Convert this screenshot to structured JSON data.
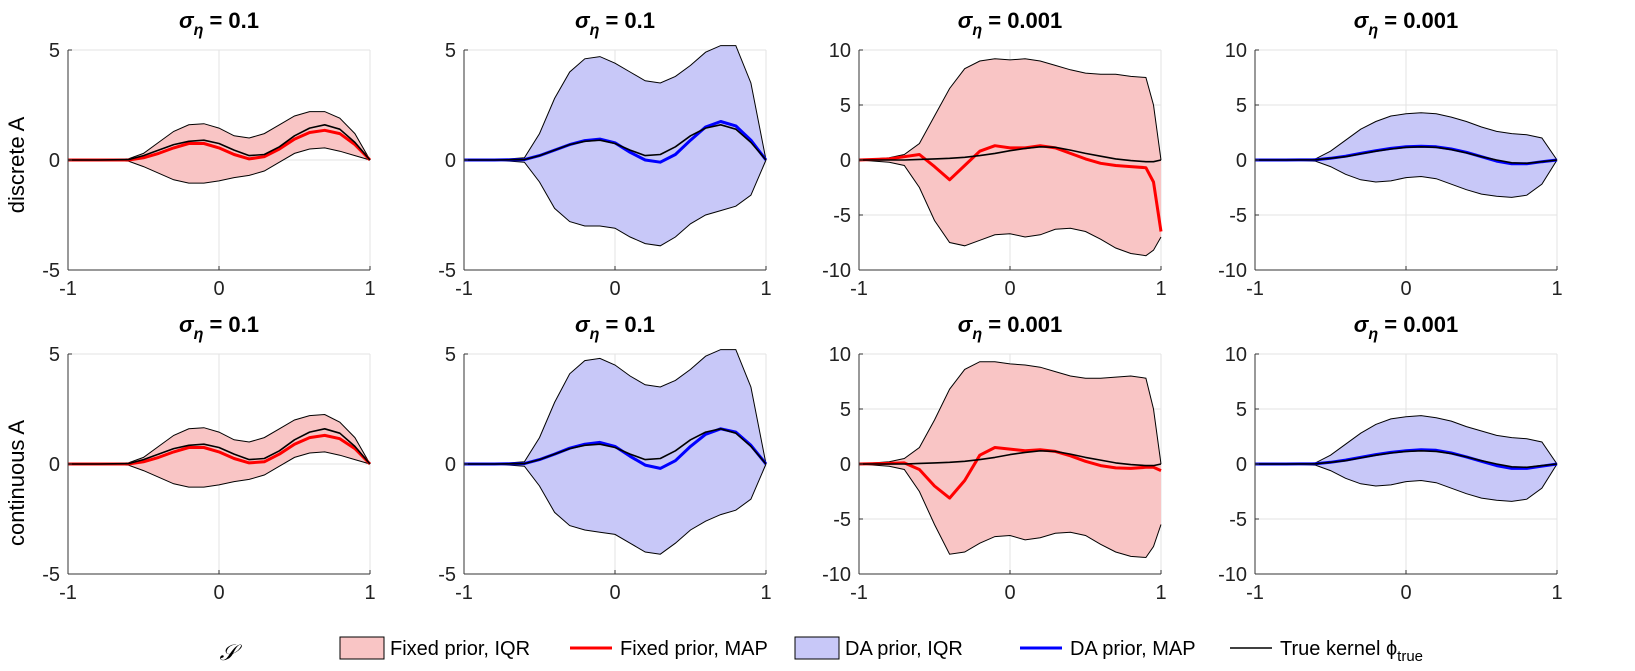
{
  "figure": {
    "row_labels": [
      "discrete A",
      "continuous A"
    ],
    "xlabel": "𝒮",
    "legend": {
      "fixed_iqr": "Fixed prior, IQR",
      "fixed_map": "Fixed prior, MAP",
      "da_iqr": "DA prior, IQR",
      "da_map": "DA prior, MAP",
      "true_kernel": "True kernel ϕ",
      "true_kernel_sub": "true"
    },
    "colors": {
      "fixed_fill": "#f9c5c5",
      "fixed_line": "#ff0000",
      "da_fill": "#c8c8f8",
      "da_line": "#0000ff",
      "true_line": "#000000",
      "grid": "#e3e3e3"
    }
  },
  "chart_data": [
    {
      "type": "line",
      "row": 0,
      "col": 0,
      "title_base": "σ",
      "title_sub": "η",
      "title_value": " = 0.1",
      "prior": "fixed",
      "xlim": [
        -1,
        1
      ],
      "ylim": [
        -5,
        5
      ],
      "xticks": [
        -1,
        0,
        1
      ],
      "yticks": [
        -5,
        0,
        5
      ],
      "grid": true,
      "x": [
        -1,
        -0.8,
        -0.6,
        -0.5,
        -0.4,
        -0.3,
        -0.2,
        -0.1,
        0,
        0.1,
        0.2,
        0.3,
        0.4,
        0.5,
        0.6,
        0.7,
        0.8,
        0.9,
        1
      ],
      "iqr_upper": [
        0,
        0,
        0.05,
        0.3,
        0.8,
        1.3,
        1.6,
        1.65,
        1.45,
        1.1,
        1.0,
        1.2,
        1.6,
        2.0,
        2.2,
        2.2,
        1.9,
        1.2,
        0
      ],
      "iqr_lower": [
        0,
        0,
        -0.05,
        -0.3,
        -0.6,
        -0.9,
        -1.05,
        -1.05,
        -0.95,
        -0.8,
        -0.7,
        -0.5,
        -0.1,
        0.3,
        0.5,
        0.55,
        0.4,
        0.2,
        0
      ],
      "map": [
        0,
        0,
        0,
        0.1,
        0.3,
        0.55,
        0.75,
        0.75,
        0.55,
        0.25,
        0.05,
        0.15,
        0.5,
        0.95,
        1.25,
        1.35,
        1.2,
        0.7,
        0
      ],
      "true": [
        0,
        0,
        0.02,
        0.2,
        0.45,
        0.7,
        0.85,
        0.9,
        0.75,
        0.45,
        0.2,
        0.25,
        0.6,
        1.1,
        1.45,
        1.6,
        1.4,
        0.8,
        0
      ]
    },
    {
      "type": "line",
      "row": 0,
      "col": 1,
      "title_base": "σ",
      "title_sub": "η",
      "title_value": " = 0.1",
      "prior": "da",
      "xlim": [
        -1,
        1
      ],
      "ylim": [
        -5,
        5
      ],
      "xticks": [
        -1,
        0,
        1
      ],
      "yticks": [
        -5,
        0,
        5
      ],
      "grid": true,
      "x": [
        -1,
        -0.8,
        -0.6,
        -0.5,
        -0.4,
        -0.3,
        -0.2,
        -0.1,
        0,
        0.1,
        0.2,
        0.3,
        0.4,
        0.5,
        0.6,
        0.7,
        0.8,
        0.9,
        1
      ],
      "iqr_upper": [
        0,
        0,
        0.1,
        1.2,
        2.8,
        4.0,
        4.6,
        4.7,
        4.4,
        4.0,
        3.6,
        3.5,
        3.8,
        4.3,
        4.9,
        5.2,
        5.2,
        3.5,
        0
      ],
      "iqr_lower": [
        0,
        0,
        -0.1,
        -1.0,
        -2.2,
        -2.8,
        -3.0,
        -3.0,
        -3.1,
        -3.5,
        -3.8,
        -3.9,
        -3.5,
        -2.9,
        -2.5,
        -2.3,
        -2.1,
        -1.6,
        0
      ],
      "map": [
        0,
        0,
        0.02,
        0.2,
        0.45,
        0.7,
        0.88,
        0.95,
        0.78,
        0.35,
        0.0,
        -0.1,
        0.25,
        0.9,
        1.5,
        1.75,
        1.55,
        0.9,
        0
      ],
      "true": [
        0,
        0,
        0.02,
        0.2,
        0.45,
        0.7,
        0.85,
        0.9,
        0.75,
        0.45,
        0.2,
        0.25,
        0.6,
        1.1,
        1.45,
        1.6,
        1.4,
        0.8,
        0
      ]
    },
    {
      "type": "line",
      "row": 0,
      "col": 2,
      "title_base": "σ",
      "title_sub": "η",
      "title_value": " = 0.001",
      "prior": "fixed",
      "xlim": [
        -1,
        1
      ],
      "ylim": [
        -10,
        10
      ],
      "xticks": [
        -1,
        0,
        1
      ],
      "yticks": [
        -10,
        -5,
        0,
        5,
        10
      ],
      "grid": true,
      "x": [
        -1,
        -0.8,
        -0.7,
        -0.6,
        -0.5,
        -0.4,
        -0.3,
        -0.2,
        -0.1,
        0,
        0.1,
        0.2,
        0.3,
        0.4,
        0.5,
        0.6,
        0.7,
        0.8,
        0.9,
        0.95,
        1
      ],
      "iqr_upper": [
        0,
        0.2,
        0.5,
        1.5,
        4.0,
        6.5,
        8.3,
        9.0,
        9.2,
        9.1,
        9.2,
        9.0,
        8.6,
        8.2,
        7.9,
        7.8,
        7.8,
        7.6,
        7.5,
        5.0,
        0
      ],
      "iqr_lower": [
        0,
        -0.2,
        -0.5,
        -2.5,
        -5.5,
        -7.5,
        -7.8,
        -7.3,
        -6.8,
        -6.7,
        -7.0,
        -6.8,
        -6.3,
        -6.2,
        -6.5,
        -7.2,
        -8.0,
        -8.5,
        -8.7,
        -8.2,
        -7.0
      ],
      "map": [
        0,
        0.1,
        0.3,
        0.5,
        -0.6,
        -1.8,
        -0.5,
        0.8,
        1.3,
        1.1,
        1.1,
        1.3,
        1.1,
        0.6,
        0.1,
        -0.3,
        -0.5,
        -0.6,
        -0.7,
        -2.0,
        -6.5
      ],
      "true": [
        0,
        0,
        0,
        0.05,
        0.1,
        0.15,
        0.25,
        0.4,
        0.6,
        0.85,
        1.05,
        1.2,
        1.15,
        0.9,
        0.6,
        0.35,
        0.1,
        -0.05,
        -0.15,
        -0.15,
        0
      ]
    },
    {
      "type": "line",
      "row": 0,
      "col": 3,
      "title_base": "σ",
      "title_sub": "η",
      "title_value": " = 0.001",
      "prior": "da",
      "xlim": [
        -1,
        1
      ],
      "ylim": [
        -10,
        10
      ],
      "xticks": [
        -1,
        0,
        1
      ],
      "yticks": [
        -10,
        -5,
        0,
        5,
        10
      ],
      "grid": true,
      "x": [
        -1,
        -0.8,
        -0.6,
        -0.5,
        -0.4,
        -0.3,
        -0.2,
        -0.1,
        0,
        0.1,
        0.2,
        0.3,
        0.4,
        0.5,
        0.6,
        0.7,
        0.8,
        0.9,
        1
      ],
      "iqr_upper": [
        0,
        0,
        0.1,
        0.8,
        1.8,
        2.8,
        3.5,
        4.0,
        4.2,
        4.3,
        4.2,
        3.9,
        3.5,
        3.0,
        2.6,
        2.4,
        2.3,
        2.0,
        0
      ],
      "iqr_lower": [
        0,
        0,
        -0.1,
        -0.6,
        -1.3,
        -1.8,
        -2.0,
        -1.9,
        -1.6,
        -1.5,
        -1.7,
        -2.2,
        -2.7,
        -3.1,
        -3.3,
        -3.4,
        -3.2,
        -2.2,
        0
      ],
      "map": [
        0,
        0,
        0.02,
        0.15,
        0.35,
        0.6,
        0.85,
        1.05,
        1.2,
        1.25,
        1.2,
        1.0,
        0.7,
        0.3,
        -0.1,
        -0.35,
        -0.35,
        -0.15,
        0
      ],
      "true": [
        0,
        0,
        0.02,
        0.15,
        0.3,
        0.55,
        0.8,
        1.0,
        1.15,
        1.2,
        1.15,
        0.95,
        0.65,
        0.3,
        0.0,
        -0.25,
        -0.3,
        -0.15,
        0
      ]
    },
    {
      "type": "line",
      "row": 1,
      "col": 0,
      "title_base": "σ",
      "title_sub": "η",
      "title_value": " = 0.1",
      "prior": "fixed",
      "xlim": [
        -1,
        1
      ],
      "ylim": [
        -5,
        5
      ],
      "xticks": [
        -1,
        0,
        1
      ],
      "yticks": [
        -5,
        0,
        5
      ],
      "grid": true,
      "x": [
        -1,
        -0.8,
        -0.6,
        -0.5,
        -0.4,
        -0.3,
        -0.2,
        -0.1,
        0,
        0.1,
        0.2,
        0.3,
        0.4,
        0.5,
        0.6,
        0.7,
        0.8,
        0.9,
        1
      ],
      "iqr_upper": [
        0,
        0,
        0.05,
        0.3,
        0.8,
        1.3,
        1.6,
        1.65,
        1.45,
        1.1,
        1.0,
        1.2,
        1.6,
        2.0,
        2.2,
        2.25,
        1.9,
        1.2,
        0
      ],
      "iqr_lower": [
        0,
        0,
        -0.05,
        -0.3,
        -0.6,
        -0.9,
        -1.05,
        -1.05,
        -0.95,
        -0.8,
        -0.7,
        -0.5,
        -0.1,
        0.3,
        0.5,
        0.55,
        0.4,
        0.2,
        0
      ],
      "map": [
        0,
        0,
        0,
        0.1,
        0.3,
        0.55,
        0.75,
        0.75,
        0.55,
        0.25,
        0.05,
        0.1,
        0.45,
        0.9,
        1.2,
        1.3,
        1.15,
        0.7,
        0
      ],
      "true": [
        0,
        0,
        0.02,
        0.2,
        0.45,
        0.7,
        0.85,
        0.9,
        0.75,
        0.45,
        0.2,
        0.25,
        0.6,
        1.1,
        1.45,
        1.6,
        1.4,
        0.8,
        0
      ]
    },
    {
      "type": "line",
      "row": 1,
      "col": 1,
      "title_base": "σ",
      "title_sub": "η",
      "title_value": " = 0.1",
      "prior": "da",
      "xlim": [
        -1,
        1
      ],
      "ylim": [
        -5,
        5
      ],
      "xticks": [
        -1,
        0,
        1
      ],
      "yticks": [
        -5,
        0,
        5
      ],
      "grid": true,
      "x": [
        -1,
        -0.8,
        -0.6,
        -0.5,
        -0.4,
        -0.3,
        -0.2,
        -0.1,
        0,
        0.1,
        0.2,
        0.3,
        0.4,
        0.5,
        0.6,
        0.7,
        0.8,
        0.9,
        1
      ],
      "iqr_upper": [
        0,
        0,
        0.1,
        1.2,
        2.8,
        4.1,
        4.7,
        4.8,
        4.5,
        4.0,
        3.6,
        3.5,
        3.8,
        4.3,
        4.9,
        5.2,
        5.2,
        3.5,
        0
      ],
      "iqr_lower": [
        0,
        0,
        -0.1,
        -1.0,
        -2.2,
        -2.8,
        -3.0,
        -3.1,
        -3.2,
        -3.6,
        -4.0,
        -4.1,
        -3.6,
        -3.0,
        -2.6,
        -2.3,
        -2.1,
        -1.6,
        0
      ],
      "map": [
        0,
        0,
        0.02,
        0.2,
        0.45,
        0.72,
        0.9,
        0.98,
        0.8,
        0.35,
        -0.05,
        -0.2,
        0.15,
        0.8,
        1.35,
        1.6,
        1.45,
        0.85,
        0
      ],
      "true": [
        0,
        0,
        0.02,
        0.2,
        0.45,
        0.7,
        0.85,
        0.9,
        0.75,
        0.45,
        0.2,
        0.25,
        0.6,
        1.1,
        1.45,
        1.6,
        1.4,
        0.8,
        0
      ]
    },
    {
      "type": "line",
      "row": 1,
      "col": 2,
      "title_base": "σ",
      "title_sub": "η",
      "title_value": " = 0.001",
      "prior": "fixed",
      "xlim": [
        -1,
        1
      ],
      "ylim": [
        -10,
        10
      ],
      "xticks": [
        -1,
        0,
        1
      ],
      "yticks": [
        -10,
        -5,
        0,
        5,
        10
      ],
      "grid": true,
      "x": [
        -1,
        -0.8,
        -0.7,
        -0.6,
        -0.5,
        -0.4,
        -0.3,
        -0.2,
        -0.1,
        0,
        0.1,
        0.2,
        0.3,
        0.4,
        0.5,
        0.6,
        0.7,
        0.8,
        0.9,
        0.95,
        1
      ],
      "iqr_upper": [
        0,
        0.2,
        0.5,
        1.5,
        4.0,
        6.8,
        8.6,
        9.3,
        9.3,
        9.1,
        9.0,
        8.8,
        8.4,
        8.0,
        7.8,
        7.8,
        7.9,
        8.0,
        7.8,
        5.0,
        0
      ],
      "iqr_lower": [
        0,
        -0.2,
        -0.5,
        -2.5,
        -5.5,
        -8.2,
        -8.0,
        -7.2,
        -6.6,
        -6.5,
        -6.9,
        -6.7,
        -6.3,
        -6.2,
        -6.5,
        -7.3,
        -8.0,
        -8.4,
        -8.5,
        -7.5,
        -5.5
      ],
      "map": [
        0,
        0.05,
        0.1,
        -0.5,
        -2.0,
        -3.1,
        -1.5,
        0.8,
        1.5,
        1.35,
        1.2,
        1.3,
        1.15,
        0.75,
        0.25,
        -0.15,
        -0.35,
        -0.4,
        -0.3,
        -0.3,
        -0.6
      ],
      "true": [
        0,
        0,
        0,
        0.05,
        0.1,
        0.15,
        0.25,
        0.4,
        0.6,
        0.85,
        1.05,
        1.2,
        1.15,
        0.9,
        0.6,
        0.35,
        0.1,
        -0.05,
        -0.15,
        -0.15,
        0
      ]
    },
    {
      "type": "line",
      "row": 1,
      "col": 3,
      "title_base": "σ",
      "title_sub": "η",
      "title_value": " = 0.001",
      "prior": "da",
      "xlim": [
        -1,
        1
      ],
      "ylim": [
        -10,
        10
      ],
      "xticks": [
        -1,
        0,
        1
      ],
      "yticks": [
        -10,
        -5,
        0,
        5,
        10
      ],
      "grid": true,
      "x": [
        -1,
        -0.8,
        -0.6,
        -0.5,
        -0.4,
        -0.3,
        -0.2,
        -0.1,
        0,
        0.1,
        0.2,
        0.3,
        0.4,
        0.5,
        0.6,
        0.7,
        0.8,
        0.9,
        1
      ],
      "iqr_upper": [
        0,
        0,
        0.1,
        0.8,
        1.8,
        2.8,
        3.6,
        4.1,
        4.3,
        4.4,
        4.2,
        3.9,
        3.4,
        3.0,
        2.6,
        2.4,
        2.3,
        2.0,
        0
      ],
      "iqr_lower": [
        0,
        0,
        -0.1,
        -0.6,
        -1.3,
        -1.8,
        -2.0,
        -1.9,
        -1.6,
        -1.5,
        -1.7,
        -2.2,
        -2.7,
        -3.1,
        -3.3,
        -3.4,
        -3.2,
        -2.2,
        0
      ],
      "map": [
        0,
        0,
        0.02,
        0.15,
        0.35,
        0.6,
        0.85,
        1.05,
        1.2,
        1.3,
        1.25,
        1.0,
        0.65,
        0.25,
        -0.15,
        -0.4,
        -0.4,
        -0.2,
        0
      ],
      "true": [
        0,
        0,
        0.02,
        0.15,
        0.3,
        0.55,
        0.8,
        1.0,
        1.15,
        1.2,
        1.15,
        0.95,
        0.65,
        0.3,
        0.0,
        -0.25,
        -0.3,
        -0.15,
        0
      ]
    }
  ]
}
